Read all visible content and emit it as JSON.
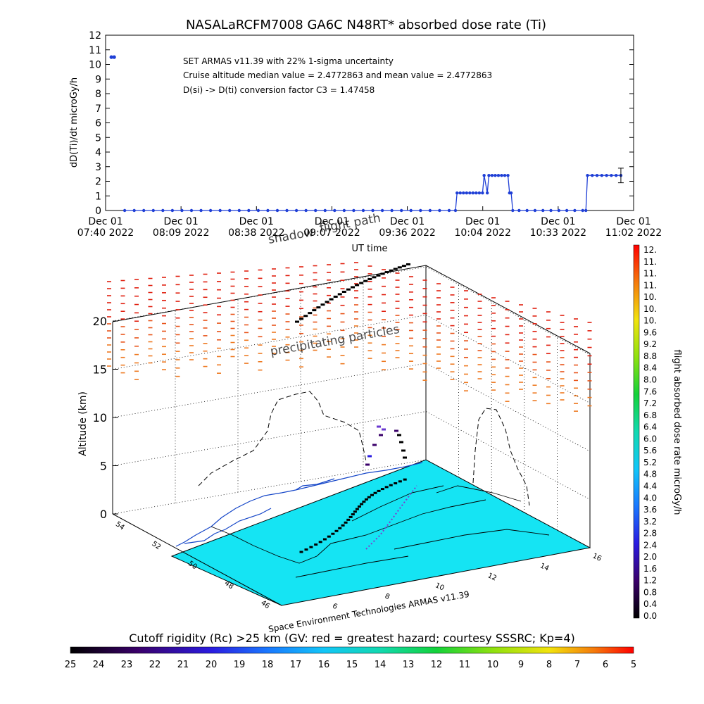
{
  "title": "NASALaRCFM7008   GA6C N48RT* absorbed dose rate (Ti)",
  "colors": {
    "series": "#1f3fd6",
    "ocean": "#15e4f3",
    "track": "#000000",
    "hazard_dash": "#d8410f"
  },
  "chart_data": [
    {
      "type": "line",
      "ylabel": "dD(Ti)/dt microGy/h",
      "xlabel": "UT time",
      "ylim": [
        0,
        12
      ],
      "yticks": [
        "0",
        "1",
        "2",
        "3",
        "4",
        "5",
        "6",
        "7",
        "8",
        "9",
        "10",
        "11",
        "12"
      ],
      "xticks": [
        {
          "date": "Dec 01",
          "time": "07:40 2022"
        },
        {
          "date": "Dec 01",
          "time": "08:09 2022"
        },
        {
          "date": "Dec 01",
          "time": "08:38 2022"
        },
        {
          "date": "Dec 01",
          "time": "09:07 2022"
        },
        {
          "date": "Dec 01",
          "time": "09:36 2022"
        },
        {
          "date": "Dec 01",
          "time": "10:04 2022"
        },
        {
          "date": "Dec 01",
          "time": "10:33 2022"
        },
        {
          "date": "Dec 01",
          "time": "11:02 2022"
        }
      ],
      "x_unit": "minutes after 07:40 UT",
      "series": [
        {
          "points": [
            [
              12,
              0
            ],
            [
              18,
              0
            ],
            [
              24,
              0
            ],
            [
              30,
              0
            ],
            [
              36,
              0
            ],
            [
              42,
              0
            ],
            [
              48,
              0
            ],
            [
              54,
              0
            ],
            [
              60,
              0
            ],
            [
              66,
              0
            ],
            [
              72,
              0
            ],
            [
              78,
              0
            ],
            [
              84,
              0
            ],
            [
              90,
              0
            ],
            [
              96,
              0
            ],
            [
              102,
              0
            ],
            [
              108,
              0
            ],
            [
              114,
              0
            ],
            [
              120,
              0
            ],
            [
              126,
              0
            ],
            [
              132,
              0
            ],
            [
              138,
              0
            ],
            [
              144,
              0
            ],
            [
              150,
              0
            ],
            [
              156,
              0
            ],
            [
              162,
              0
            ],
            [
              168,
              0
            ],
            [
              174,
              0
            ],
            [
              180,
              0
            ],
            [
              186,
              0
            ],
            [
              192,
              0
            ],
            [
              198,
              0
            ],
            [
              204,
              0
            ],
            [
              210,
              0
            ],
            [
              216,
              0
            ],
            [
              220,
              0
            ],
            [
              221,
              1.2
            ],
            [
              223,
              1.2
            ],
            [
              225,
              1.2
            ],
            [
              227,
              1.2
            ],
            [
              229,
              1.2
            ],
            [
              231,
              1.2
            ],
            [
              233,
              1.2
            ],
            [
              235,
              1.2
            ],
            [
              237,
              1.2
            ],
            [
              238,
              2.4
            ],
            [
              240,
              1.2
            ],
            [
              241,
              2.4
            ],
            [
              243,
              2.4
            ],
            [
              245,
              2.4
            ],
            [
              247,
              2.4
            ],
            [
              249,
              2.4
            ],
            [
              251,
              2.4
            ],
            [
              253,
              2.4
            ],
            [
              254,
              1.2
            ],
            [
              255,
              1.2
            ],
            [
              256,
              0
            ],
            [
              260,
              0
            ],
            [
              265,
              0
            ],
            [
              270,
              0
            ],
            [
              275,
              0
            ],
            [
              280,
              0
            ],
            [
              285,
              0
            ],
            [
              290,
              0
            ],
            [
              295,
              0
            ],
            [
              300,
              0
            ],
            [
              302,
              0
            ],
            [
              303,
              2.4
            ],
            [
              306,
              2.4
            ],
            [
              309,
              2.4
            ],
            [
              312,
              2.4
            ],
            [
              315,
              2.4
            ],
            [
              318,
              2.4
            ],
            [
              321,
              2.4
            ],
            [
              324,
              2.4
            ]
          ]
        }
      ],
      "outlier": [
        4.5,
        10.5
      ],
      "error_bar": {
        "x": 324,
        "low": 1.9,
        "high": 2.9
      },
      "annotations": [
        "SET ARMAS v11.39 with 22% 1-sigma uncertainty",
        "Cruise altitude median value = 2.4772863 and mean value = 2.4772863",
        "D(si) -> D(ti) conversion factor C3 = 1.47458"
      ]
    },
    {
      "type": "scatter",
      "zlabel": "Altitude (km)",
      "zticks": [
        "0",
        "5",
        "10",
        "15",
        "20"
      ],
      "lat_ticks": [
        "54",
        "52",
        "50",
        "48",
        "46"
      ],
      "lon_ticks": [
        "6",
        "8",
        "10",
        "12",
        "14",
        "16"
      ],
      "credit": "Space Environment Technologies ARMAS v11.39",
      "labels": [
        "flight path",
        "shadow",
        "precipitating particles"
      ],
      "flight_path": [
        {
          "lon": 7.0,
          "lat": 48.3,
          "alt": 19.8
        },
        {
          "lon": 8.1,
          "lat": 49.2,
          "alt": 20.5
        },
        {
          "lon": 9.2,
          "lat": 49.9,
          "alt": 21.2
        },
        {
          "lon": 10.3,
          "lat": 50.6,
          "alt": 21.9
        },
        {
          "lon": 11.4,
          "lat": 51.5,
          "alt": 22.8
        },
        {
          "lon": 12.6,
          "lat": 52.4,
          "alt": 23.6
        }
      ]
    }
  ],
  "dose_colorbar": {
    "label": "flight absorbed dose rate microGy/h",
    "ticks": [
      "12.",
      "11.",
      "11.",
      "11.",
      "10.",
      "10.",
      "10.",
      "9.6",
      "9.2",
      "8.8",
      "8.4",
      "8.0",
      "7.6",
      "7.2",
      "6.8",
      "6.4",
      "6.0",
      "5.6",
      "5.2",
      "4.8",
      "4.4",
      "4.0",
      "3.6",
      "3.2",
      "2.8",
      "2.4",
      "2.0",
      "1.6",
      "1.2",
      "0.8",
      "0.4",
      "0.0"
    ]
  },
  "rigidity_colorbar": {
    "label": "Cutoff rigidity (Rc) >25 km (GV: red = greatest hazard; courtesy SSSRC; Kp=4)",
    "ticks": [
      "25",
      "24",
      "23",
      "22",
      "21",
      "20",
      "19",
      "18",
      "17",
      "16",
      "15",
      "14",
      "13",
      "12",
      "11",
      "10",
      "9",
      "8",
      "7",
      "6",
      "5"
    ]
  }
}
